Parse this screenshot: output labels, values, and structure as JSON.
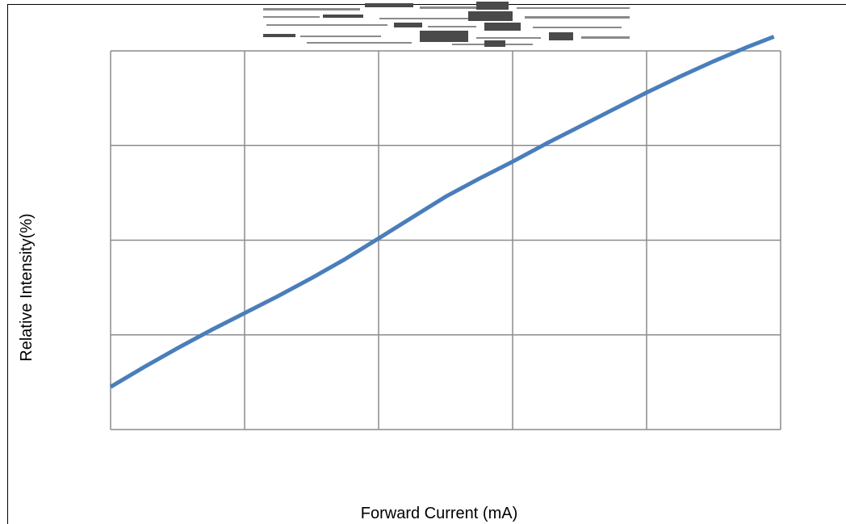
{
  "chart_data": {
    "type": "line",
    "title": "",
    "xlabel": "Forward Current (mA)",
    "ylabel": "Relative Intensity(%)",
    "xlim": [
      0,
      5
    ],
    "ylim": [
      0,
      4
    ],
    "x_gridlines": [
      0,
      1,
      2,
      3,
      4,
      5
    ],
    "y_gridlines": [
      0,
      1,
      2,
      3,
      4
    ],
    "grid": true,
    "tick_labels_visible": false,
    "series": [
      {
        "color": "#4a7ebb",
        "x": [
          0,
          0.25,
          0.5,
          0.75,
          1.0,
          1.25,
          1.5,
          1.75,
          2.0,
          2.25,
          2.5,
          2.75,
          3.0,
          3.25,
          3.5,
          3.75,
          4.0,
          4.25,
          4.5,
          4.75,
          4.95
        ],
        "y": [
          0.45,
          0.66,
          0.86,
          1.05,
          1.23,
          1.41,
          1.6,
          1.8,
          2.02,
          2.24,
          2.46,
          2.65,
          2.83,
          3.02,
          3.2,
          3.38,
          3.56,
          3.73,
          3.89,
          4.04,
          4.15
        ]
      }
    ]
  }
}
